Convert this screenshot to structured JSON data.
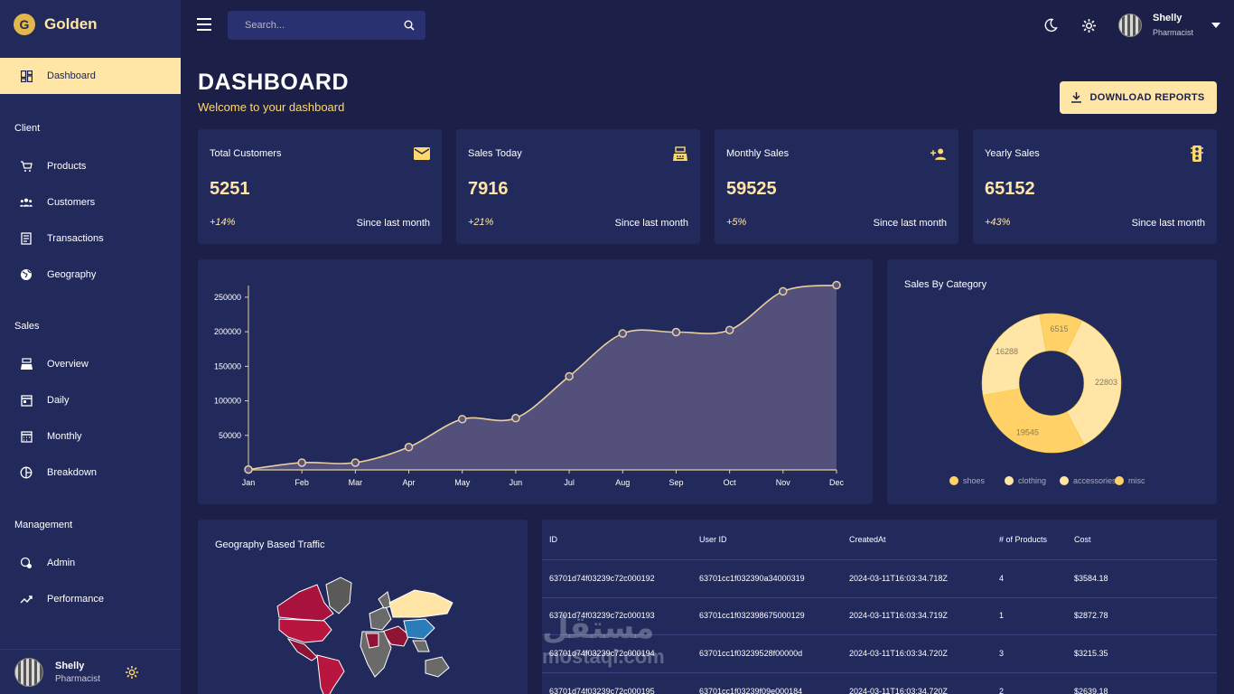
{
  "brand": {
    "name": "Golden",
    "logo_letter": "G"
  },
  "sidebar": {
    "active": {
      "label": "Dashboard",
      "icon": "dashboard-icon"
    },
    "sections": [
      {
        "title": "Client",
        "items": [
          {
            "label": "Products",
            "icon": "cart-icon"
          },
          {
            "label": "Customers",
            "icon": "people-icon"
          },
          {
            "label": "Transactions",
            "icon": "receipt-icon"
          },
          {
            "label": "Geography",
            "icon": "globe-icon"
          }
        ]
      },
      {
        "title": "Sales",
        "items": [
          {
            "label": "Overview",
            "icon": "point-of-sale-icon"
          },
          {
            "label": "Daily",
            "icon": "calendar-today-icon"
          },
          {
            "label": "Monthly",
            "icon": "calendar-month-icon"
          },
          {
            "label": "Breakdown",
            "icon": "pie-chart-icon"
          }
        ]
      },
      {
        "title": "Management",
        "items": [
          {
            "label": "Admin",
            "icon": "admin-settings-icon"
          },
          {
            "label": "Performance",
            "icon": "trending-up-icon"
          }
        ]
      }
    ],
    "user": {
      "name": "Shelly",
      "role": "Pharmacist"
    }
  },
  "topbar": {
    "search_placeholder": "Search...",
    "user": {
      "name": "Shelly",
      "role": "Pharmacist"
    }
  },
  "header": {
    "title": "DASHBOARD",
    "subtitle": "Welcome to your dashboard",
    "download_label": "DOWNLOAD REPORTS"
  },
  "stats": [
    {
      "title": "Total Customers",
      "value": "5251",
      "change": "+14%",
      "since": "Since last month",
      "icon": "email-icon"
    },
    {
      "title": "Sales Today",
      "value": "7916",
      "change": "+21%",
      "since": "Since last month",
      "icon": "point-of-sale-icon"
    },
    {
      "title": "Monthly Sales",
      "value": "59525",
      "change": "+5%",
      "since": "Since last month",
      "icon": "person-add-icon"
    },
    {
      "title": "Yearly Sales",
      "value": "65152",
      "change": "+43%",
      "since": "Since last month",
      "icon": "traffic-icon"
    }
  ],
  "chart_data": [
    {
      "type": "area",
      "categories": [
        "Jan",
        "Feb",
        "Mar",
        "Apr",
        "May",
        "Jun",
        "Jul",
        "Aug",
        "Sep",
        "Oct",
        "Nov",
        "Dec"
      ],
      "values": [
        500,
        10500,
        10500,
        33000,
        73500,
        75000,
        135500,
        197500,
        199500,
        202500,
        258500,
        267500
      ],
      "ylim": [
        0,
        280000
      ],
      "yticks": [
        50000,
        100000,
        150000,
        200000,
        250000
      ],
      "grid": false,
      "colors": {
        "fill": "#5a5480",
        "line": "#e8cfa0"
      }
    },
    {
      "type": "pie",
      "title": "Sales By Category",
      "labels": [
        "shoes",
        "clothing",
        "accessories",
        "misc"
      ],
      "values": [
        6515,
        22803,
        19545,
        16288
      ],
      "colors": [
        "#ffd166",
        "#ffe6a7",
        "#ffd166",
        "#ffe6a7"
      ],
      "legend_colors": [
        "#ffd166",
        "#ffe6a7",
        "#ffe6a7",
        "#ffd166"
      ],
      "legend": "bottom"
    }
  ],
  "geo": {
    "title": "Geography Based Traffic"
  },
  "table": {
    "columns": [
      "ID",
      "User ID",
      "CreatedAt",
      "# of Products",
      "Cost"
    ],
    "rows": [
      [
        "63701d74f03239c72c000192",
        "63701cc1f032390a34000319",
        "2024-03-11T16:03:34.718Z",
        "4",
        "$3584.18"
      ],
      [
        "63701d74f03239c72c000193",
        "63701cc1f032398675000129",
        "2024-03-11T16:03:34.719Z",
        "1",
        "$2872.78"
      ],
      [
        "63701d74f03239c72c000194",
        "63701cc1f03239528f00000d",
        "2024-03-11T16:03:34.720Z",
        "3",
        "$3215.35"
      ],
      [
        "63701d74f03239c72c000195",
        "63701cc1f03239f09e000184",
        "2024-03-11T16:03:34.720Z",
        "2",
        "$2639.18"
      ]
    ]
  },
  "watermark": {
    "arabic": "مستقل",
    "latin": "mostaql.com"
  }
}
